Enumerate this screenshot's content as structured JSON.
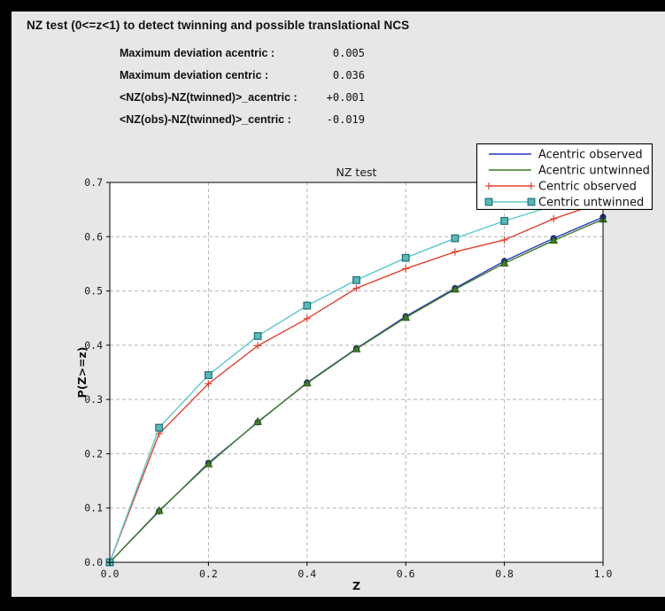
{
  "header": {
    "title": "NZ test (0<=z<1) to detect twinning and possible translational NCS",
    "stats": [
      {
        "label": "Maximum deviation acentric :",
        "value": "0.005"
      },
      {
        "label": "Maximum deviation centric :",
        "value": "0.036"
      },
      {
        "label": "<NZ(obs)-NZ(twinned)>_acentric :",
        "value": "+0.001"
      },
      {
        "label": "<NZ(obs)-NZ(twinned)>_centric :",
        "value": "-0.019"
      }
    ]
  },
  "chart_data": {
    "type": "line",
    "title": "NZ test",
    "xlabel": "Z",
    "ylabel": "P(Z>=z)",
    "xlim": [
      0.0,
      1.0
    ],
    "ylim": [
      0.0,
      0.7
    ],
    "xticks": [
      0.0,
      0.2,
      0.4,
      0.6,
      0.8,
      1.0
    ],
    "yticks": [
      0.0,
      0.1,
      0.2,
      0.3,
      0.4,
      0.5,
      0.6,
      0.7
    ],
    "grid": true,
    "grid_color": "#b3b3b3",
    "plot_bg": "#ffffff",
    "figure_bg": "#e7e7e7",
    "legend_position": "top-right",
    "x": [
      0.0,
      0.1,
      0.2,
      0.3,
      0.4,
      0.5,
      0.6,
      0.7,
      0.8,
      0.9,
      1.0
    ],
    "series": [
      {
        "name": "Acentric observed",
        "color": "#2636c4",
        "marker": "circle",
        "marker_fill": "#2133b8",
        "marker_edge": "#0d1d6e",
        "values": [
          0.0,
          0.094,
          0.183,
          0.258,
          0.331,
          0.394,
          0.453,
          0.505,
          0.555,
          0.597,
          0.636
        ]
      },
      {
        "name": "Acentric untwinned",
        "color": "#3e7c22",
        "marker": "triangle",
        "marker_fill": "#3f7d21",
        "marker_edge": "#234f0e",
        "values": [
          0.0,
          0.095,
          0.181,
          0.259,
          0.33,
          0.393,
          0.451,
          0.503,
          0.551,
          0.593,
          0.632
        ]
      },
      {
        "name": "Centric observed",
        "color": "#e4402e",
        "marker": "plus",
        "marker_fill": "#e4402e",
        "marker_edge": "#e4402e",
        "values": [
          0.0,
          0.237,
          0.329,
          0.399,
          0.449,
          0.505,
          0.541,
          0.572,
          0.594,
          0.633,
          0.664
        ]
      },
      {
        "name": "Centric untwinned",
        "color": "#5cc9cb",
        "marker": "square",
        "marker_fill": "#58b9b9",
        "marker_edge": "#1f6f74",
        "values": [
          0.0,
          0.248,
          0.345,
          0.417,
          0.473,
          0.52,
          0.561,
          0.597,
          0.629,
          0.657,
          0.683
        ]
      }
    ]
  }
}
